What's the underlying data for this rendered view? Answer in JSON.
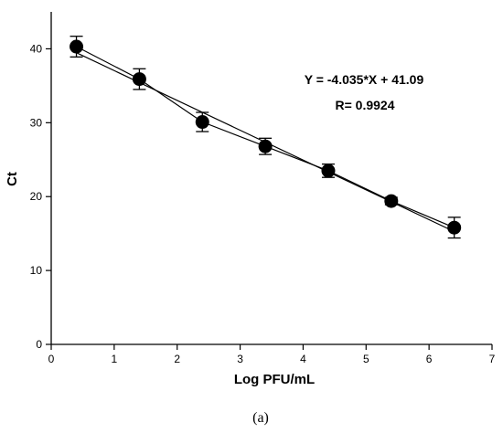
{
  "chart_data": {
    "type": "scatter",
    "xlabel": "Log PFU/mL",
    "ylabel": "Ct",
    "xlim": [
      0,
      7
    ],
    "ylim": [
      0,
      45
    ],
    "xticks": [
      0,
      1,
      2,
      3,
      4,
      5,
      6,
      7
    ],
    "yticks": [
      0,
      10,
      20,
      30,
      40
    ],
    "grid": false,
    "points": [
      {
        "x": 0.4,
        "y": 40.3,
        "err": 1.4
      },
      {
        "x": 1.4,
        "y": 35.9,
        "err": 1.4
      },
      {
        "x": 2.4,
        "y": 30.1,
        "err": 1.3
      },
      {
        "x": 3.4,
        "y": 26.8,
        "err": 1.1
      },
      {
        "x": 4.4,
        "y": 23.5,
        "err": 0.9
      },
      {
        "x": 5.4,
        "y": 19.4,
        "err": 0.5
      },
      {
        "x": 6.4,
        "y": 15.8,
        "err": 1.4
      }
    ],
    "fit": {
      "slope": -4.035,
      "intercept": 41.09
    },
    "annotations": [
      "Y = -4.035*X + 41.09",
      "R= 0.9924"
    ]
  },
  "caption": "(a)"
}
